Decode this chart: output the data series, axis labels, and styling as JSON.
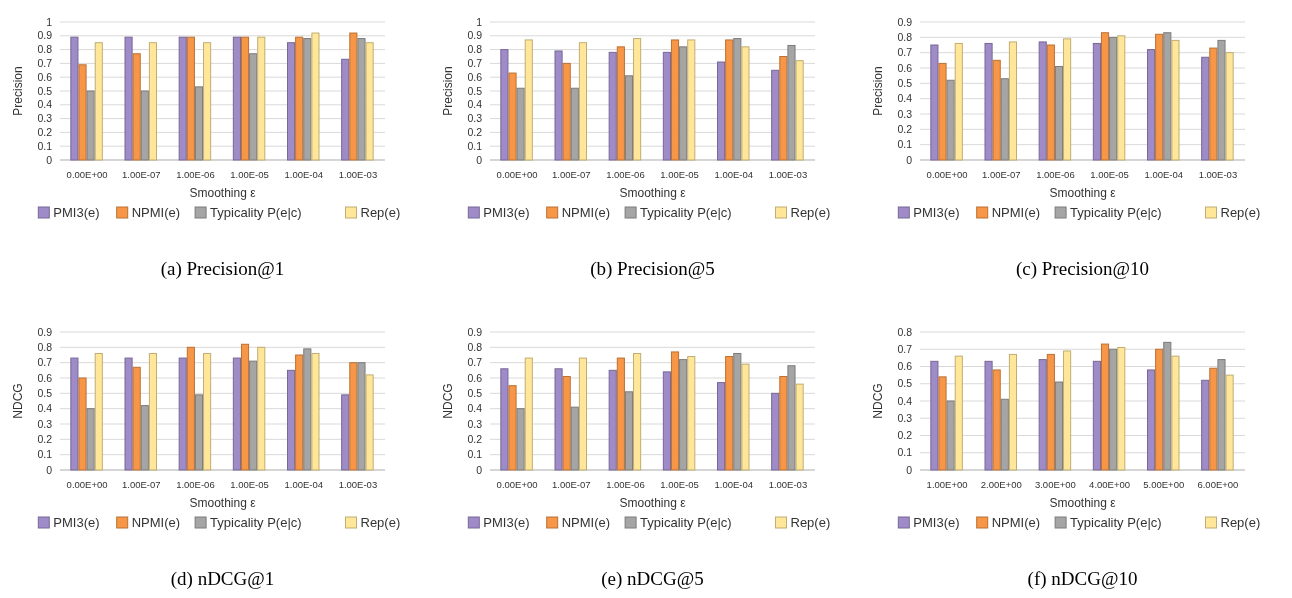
{
  "chart_data": [
    {
      "type": "bar",
      "title": "(a) Precision@1",
      "xlabel": "Smoothing ε",
      "ylabel": "Precision",
      "categories": [
        "0.00E+00",
        "1.00E-07",
        "1.00E-06",
        "1.00E-05",
        "1.00E-04",
        "1.00E-03"
      ],
      "ylim": [
        0,
        1
      ],
      "yticks": [
        0,
        0.1,
        0.2,
        0.3,
        0.4,
        0.5,
        0.6,
        0.7,
        0.8,
        0.9,
        1
      ],
      "grid": "y",
      "legend": "bottom",
      "series": [
        {
          "name": "PMI3(e)",
          "color": "#9e8bc8",
          "values": [
            0.89,
            0.89,
            0.89,
            0.89,
            0.85,
            0.73
          ]
        },
        {
          "name": "NPMI(e)",
          "color": "#f79646",
          "values": [
            0.69,
            0.77,
            0.89,
            0.89,
            0.89,
            0.92
          ]
        },
        {
          "name": "Typicality P(e|c)",
          "color": "#a5a5a5",
          "values": [
            0.5,
            0.5,
            0.53,
            0.77,
            0.88,
            0.88
          ]
        },
        {
          "name": "Rep(e)",
          "color": "#ffe699",
          "values": [
            0.85,
            0.85,
            0.85,
            0.89,
            0.92,
            0.85
          ]
        }
      ]
    },
    {
      "type": "bar",
      "title": "(b) Precision@5",
      "xlabel": "Smoothing ε",
      "ylabel": "Precision",
      "categories": [
        "0.00E+00",
        "1.00E-07",
        "1.00E-06",
        "1.00E-05",
        "1.00E-04",
        "1.00E-03"
      ],
      "ylim": [
        0,
        1
      ],
      "yticks": [
        0,
        0.1,
        0.2,
        0.3,
        0.4,
        0.5,
        0.6,
        0.7,
        0.8,
        0.9,
        1
      ],
      "grid": "y",
      "legend": "bottom",
      "series": [
        {
          "name": "PMI3(e)",
          "color": "#9e8bc8",
          "values": [
            0.8,
            0.79,
            0.78,
            0.78,
            0.71,
            0.65
          ]
        },
        {
          "name": "NPMI(e)",
          "color": "#f79646",
          "values": [
            0.63,
            0.7,
            0.82,
            0.87,
            0.87,
            0.75
          ]
        },
        {
          "name": "Typicality P(e|c)",
          "color": "#a5a5a5",
          "values": [
            0.52,
            0.52,
            0.61,
            0.82,
            0.88,
            0.83
          ]
        },
        {
          "name": "Rep(e)",
          "color": "#ffe699",
          "values": [
            0.87,
            0.85,
            0.88,
            0.87,
            0.82,
            0.72
          ]
        }
      ]
    },
    {
      "type": "bar",
      "title": "(c) Precision@10",
      "xlabel": "Smoothing ε",
      "ylabel": "Precision",
      "categories": [
        "0.00E+00",
        "1.00E-07",
        "1.00E-06",
        "1.00E-05",
        "1.00E-04",
        "1.00E-03"
      ],
      "ylim": [
        0,
        0.9
      ],
      "yticks": [
        0,
        0.1,
        0.2,
        0.3,
        0.4,
        0.5,
        0.6,
        0.7,
        0.8,
        0.9
      ],
      "grid": "y",
      "legend": "bottom",
      "series": [
        {
          "name": "PMI3(e)",
          "color": "#9e8bc8",
          "values": [
            0.75,
            0.76,
            0.77,
            0.76,
            0.72,
            0.67
          ]
        },
        {
          "name": "NPMI(e)",
          "color": "#f79646",
          "values": [
            0.63,
            0.65,
            0.75,
            0.83,
            0.82,
            0.73
          ]
        },
        {
          "name": "Typicality P(e|c)",
          "color": "#a5a5a5",
          "values": [
            0.52,
            0.53,
            0.61,
            0.8,
            0.83,
            0.78
          ]
        },
        {
          "name": "Rep(e)",
          "color": "#ffe699",
          "values": [
            0.76,
            0.77,
            0.79,
            0.81,
            0.78,
            0.7
          ]
        }
      ]
    },
    {
      "type": "bar",
      "title": "(d) nDCG@1",
      "xlabel": "Smoothing ε",
      "ylabel": "NDCG",
      "categories": [
        "0.00E+00",
        "1.00E-07",
        "1.00E-06",
        "1.00E-05",
        "1.00E-04",
        "1.00E-03"
      ],
      "ylim": [
        0,
        0.9
      ],
      "yticks": [
        0,
        0.1,
        0.2,
        0.3,
        0.4,
        0.5,
        0.6,
        0.7,
        0.8,
        0.9
      ],
      "grid": "y",
      "legend": "bottom",
      "series": [
        {
          "name": "PMI3(e)",
          "color": "#9e8bc8",
          "values": [
            0.73,
            0.73,
            0.73,
            0.73,
            0.65,
            0.49
          ]
        },
        {
          "name": "NPMI(e)",
          "color": "#f79646",
          "values": [
            0.6,
            0.67,
            0.8,
            0.82,
            0.75,
            0.7
          ]
        },
        {
          "name": "Typicality P(e|c)",
          "color": "#a5a5a5",
          "values": [
            0.4,
            0.42,
            0.49,
            0.71,
            0.79,
            0.7
          ]
        },
        {
          "name": "Rep(e)",
          "color": "#ffe699",
          "values": [
            0.76,
            0.76,
            0.76,
            0.8,
            0.76,
            0.62
          ]
        }
      ]
    },
    {
      "type": "bar",
      "title": "(e) nDCG@5",
      "xlabel": "Smoothing ε",
      "ylabel": "NDCG",
      "categories": [
        "0.00E+00",
        "1.00E-07",
        "1.00E-06",
        "1.00E-05",
        "1.00E-04",
        "1.00E-03"
      ],
      "ylim": [
        0,
        0.9
      ],
      "yticks": [
        0,
        0.1,
        0.2,
        0.3,
        0.4,
        0.5,
        0.6,
        0.7,
        0.8,
        0.9
      ],
      "grid": "y",
      "legend": "bottom",
      "series": [
        {
          "name": "PMI3(e)",
          "color": "#9e8bc8",
          "values": [
            0.66,
            0.66,
            0.65,
            0.64,
            0.57,
            0.5
          ]
        },
        {
          "name": "NPMI(e)",
          "color": "#f79646",
          "values": [
            0.55,
            0.61,
            0.73,
            0.77,
            0.74,
            0.61
          ]
        },
        {
          "name": "Typicality P(e|c)",
          "color": "#a5a5a5",
          "values": [
            0.4,
            0.41,
            0.51,
            0.72,
            0.76,
            0.68
          ]
        },
        {
          "name": "Rep(e)",
          "color": "#ffe699",
          "values": [
            0.73,
            0.73,
            0.76,
            0.74,
            0.69,
            0.56
          ]
        }
      ]
    },
    {
      "type": "bar",
      "title": "(f) nDCG@10",
      "xlabel": "Smoothing ε",
      "ylabel": "NDCG",
      "categories": [
        "1.00E+00",
        "2.00E+00",
        "3.00E+00",
        "4.00E+00",
        "5.00E+00",
        "6.00E+00"
      ],
      "ylim": [
        0,
        0.8
      ],
      "yticks": [
        0,
        0.1,
        0.2,
        0.3,
        0.4,
        0.5,
        0.6,
        0.7,
        0.8
      ],
      "grid": "y",
      "legend": "bottom",
      "series": [
        {
          "name": "PMI3(e)",
          "color": "#9e8bc8",
          "values": [
            0.63,
            0.63,
            0.64,
            0.63,
            0.58,
            0.52
          ]
        },
        {
          "name": "NPMI(e)",
          "color": "#f79646",
          "values": [
            0.54,
            0.58,
            0.67,
            0.73,
            0.7,
            0.59
          ]
        },
        {
          "name": "Typicality P(e|c)",
          "color": "#a5a5a5",
          "values": [
            0.4,
            0.41,
            0.51,
            0.7,
            0.74,
            0.64
          ]
        },
        {
          "name": "Rep(e)",
          "color": "#ffe699",
          "values": [
            0.66,
            0.67,
            0.69,
            0.71,
            0.66,
            0.55
          ]
        }
      ]
    }
  ]
}
